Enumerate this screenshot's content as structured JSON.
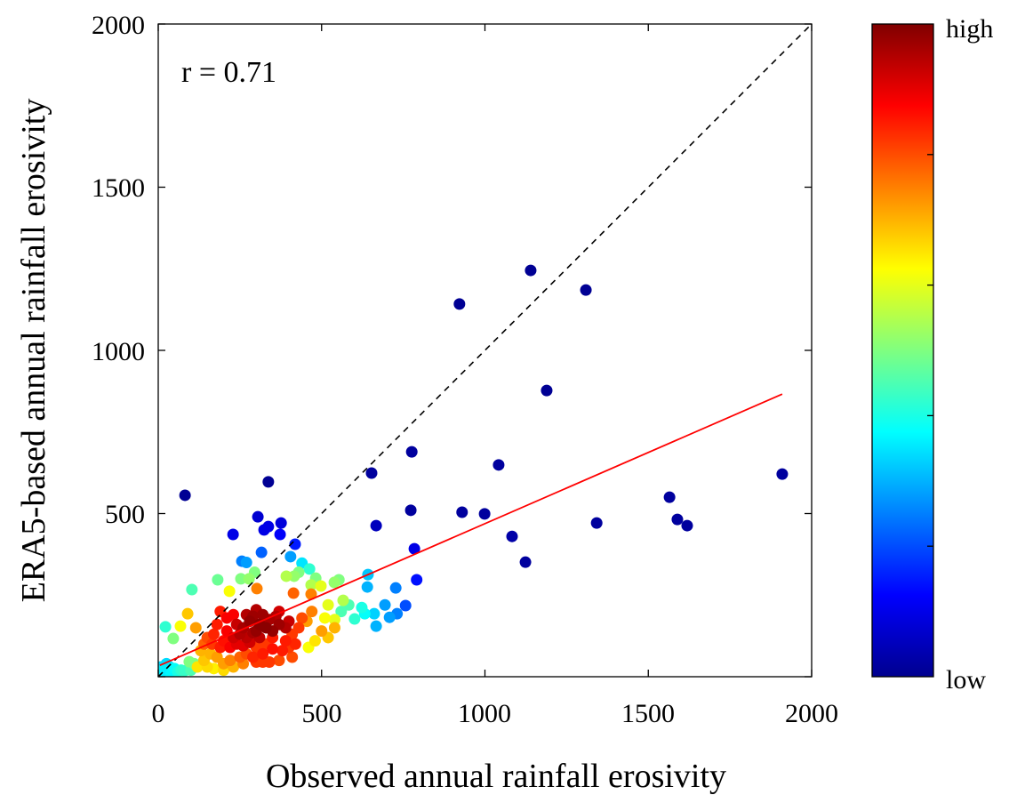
{
  "chart_data": {
    "type": "scatter",
    "xlabel": "Observed annual rainfall erosivity",
    "ylabel": "ERA5-based annual rainfall erosivity",
    "xlim": [
      0,
      2000
    ],
    "ylim": [
      0,
      2000
    ],
    "xticks": [
      "0",
      "500",
      "1000",
      "1500",
      "2000"
    ],
    "yticks": [
      "500",
      "1000",
      "1500",
      "2000"
    ],
    "xtick_values": [
      0,
      500,
      1000,
      1500,
      2000
    ],
    "ytick_values": [
      500,
      1000,
      1500,
      2000
    ],
    "annotation": "r = 0.71",
    "colorbar": {
      "high": "high",
      "low": "low",
      "colormap": "jet",
      "ticks": [
        0.2,
        0.4,
        0.6,
        0.8
      ]
    },
    "identity_line": {
      "style": "dashed",
      "color": "#000000",
      "from": [
        0,
        0
      ],
      "to": [
        2000,
        2000
      ]
    },
    "fit_line": {
      "color": "#ff0000",
      "from": [
        5,
        35
      ],
      "to": [
        1910,
        866
      ]
    },
    "point_format": [
      "x",
      "y",
      "density (0=low,1=high)"
    ],
    "points": [
      [
        82,
        556,
        0.02
      ],
      [
        337,
        597,
        0.02
      ],
      [
        653,
        624,
        0.03
      ],
      [
        922,
        1142,
        0.02
      ],
      [
        1140,
        1245,
        0.02
      ],
      [
        1309,
        1185,
        0.02
      ],
      [
        1189,
        877,
        0.02
      ],
      [
        776,
        689,
        0.03
      ],
      [
        1042,
        649,
        0.03
      ],
      [
        930,
        504,
        0.03
      ],
      [
        999,
        499,
        0.03
      ],
      [
        773,
        510,
        0.03
      ],
      [
        1083,
        430,
        0.04
      ],
      [
        1124,
        351,
        0.03
      ],
      [
        1342,
        471,
        0.03
      ],
      [
        1565,
        550,
        0.03
      ],
      [
        1589,
        482,
        0.03
      ],
      [
        1619,
        463,
        0.03
      ],
      [
        1910,
        621,
        0.03
      ],
      [
        667,
        463,
        0.06
      ],
      [
        784,
        392,
        0.1
      ],
      [
        791,
        297,
        0.14
      ],
      [
        305,
        490,
        0.08
      ],
      [
        324,
        450,
        0.1
      ],
      [
        337,
        460,
        0.1
      ],
      [
        373,
        436,
        0.12
      ],
      [
        376,
        471,
        0.09
      ],
      [
        229,
        436,
        0.1
      ],
      [
        419,
        406,
        0.15
      ],
      [
        256,
        354,
        0.25
      ],
      [
        270,
        350,
        0.28
      ],
      [
        316,
        381,
        0.22
      ],
      [
        405,
        368,
        0.28
      ],
      [
        440,
        348,
        0.35
      ],
      [
        642,
        313,
        0.32
      ],
      [
        640,
        275,
        0.3
      ],
      [
        727,
        272,
        0.25
      ],
      [
        694,
        220,
        0.28
      ],
      [
        731,
        193,
        0.25
      ],
      [
        757,
        218,
        0.2
      ],
      [
        661,
        193,
        0.33
      ],
      [
        632,
        193,
        0.38
      ],
      [
        708,
        182,
        0.28
      ],
      [
        667,
        155,
        0.3
      ],
      [
        601,
        177,
        0.42
      ],
      [
        623,
        212,
        0.4
      ],
      [
        583,
        220,
        0.45
      ],
      [
        560,
        200,
        0.45
      ],
      [
        182,
        297,
        0.48
      ],
      [
        253,
        300,
        0.5
      ],
      [
        278,
        300,
        0.52
      ],
      [
        392,
        308,
        0.55
      ],
      [
        416,
        308,
        0.52
      ],
      [
        463,
        330,
        0.42
      ],
      [
        482,
        302,
        0.5
      ],
      [
        498,
        278,
        0.6
      ],
      [
        553,
        297,
        0.5
      ],
      [
        539,
        289,
        0.52
      ],
      [
        566,
        234,
        0.55
      ],
      [
        468,
        281,
        0.55
      ],
      [
        103,
        267,
        0.45
      ],
      [
        22,
        153,
        0.42
      ],
      [
        46,
        117,
        0.5
      ],
      [
        95,
        46,
        0.5
      ],
      [
        430,
        320,
        0.5
      ],
      [
        295,
        320,
        0.5
      ],
      [
        520,
        220,
        0.6
      ],
      [
        540,
        175,
        0.6
      ],
      [
        510,
        180,
        0.62
      ],
      [
        90,
        193,
        0.68
      ],
      [
        68,
        155,
        0.62
      ],
      [
        414,
        256,
        0.78
      ],
      [
        468,
        253,
        0.75
      ],
      [
        302,
        270,
        0.75
      ],
      [
        218,
        262,
        0.62
      ],
      [
        115,
        150,
        0.72
      ],
      [
        540,
        150,
        0.7
      ],
      [
        520,
        120,
        0.68
      ],
      [
        480,
        110,
        0.65
      ],
      [
        460,
        90,
        0.62
      ],
      [
        500,
        140,
        0.72
      ],
      [
        455,
        170,
        0.72
      ],
      [
        470,
        200,
        0.75
      ],
      [
        440,
        180,
        0.8
      ],
      [
        430,
        150,
        0.82
      ],
      [
        410,
        130,
        0.82
      ],
      [
        390,
        110,
        0.85
      ],
      [
        350,
        120,
        0.85
      ],
      [
        330,
        100,
        0.82
      ],
      [
        300,
        90,
        0.82
      ],
      [
        270,
        70,
        0.8
      ],
      [
        250,
        60,
        0.78
      ],
      [
        220,
        50,
        0.75
      ],
      [
        200,
        40,
        0.72
      ],
      [
        180,
        60,
        0.72
      ],
      [
        160,
        70,
        0.7
      ],
      [
        140,
        50,
        0.68
      ],
      [
        130,
        80,
        0.7
      ],
      [
        120,
        30,
        0.65
      ],
      [
        150,
        30,
        0.66
      ],
      [
        170,
        25,
        0.64
      ],
      [
        200,
        20,
        0.66
      ],
      [
        230,
        30,
        0.7
      ],
      [
        260,
        40,
        0.75
      ],
      [
        300,
        45,
        0.82
      ],
      [
        320,
        45,
        0.82
      ],
      [
        340,
        45,
        0.82
      ],
      [
        370,
        50,
        0.8
      ],
      [
        410,
        60,
        0.8
      ],
      [
        370,
        200,
        0.92
      ],
      [
        360,
        185,
        0.95
      ],
      [
        340,
        175,
        0.96
      ],
      [
        320,
        190,
        0.97
      ],
      [
        300,
        205,
        0.95
      ],
      [
        290,
        185,
        0.97
      ],
      [
        280,
        170,
        0.98
      ],
      [
        310,
        160,
        0.99
      ],
      [
        330,
        150,
        0.99
      ],
      [
        350,
        140,
        0.98
      ],
      [
        370,
        160,
        0.97
      ],
      [
        390,
        150,
        0.95
      ],
      [
        400,
        170,
        0.93
      ],
      [
        260,
        150,
        0.96
      ],
      [
        250,
        130,
        0.95
      ],
      [
        240,
        160,
        0.93
      ],
      [
        230,
        120,
        0.92
      ],
      [
        270,
        120,
        0.94
      ],
      [
        290,
        135,
        0.96
      ],
      [
        310,
        120,
        0.94
      ],
      [
        210,
        140,
        0.88
      ],
      [
        200,
        110,
        0.86
      ],
      [
        190,
        90,
        0.85
      ],
      [
        220,
        90,
        0.88
      ],
      [
        240,
        100,
        0.9
      ],
      [
        260,
        95,
        0.9
      ],
      [
        280,
        105,
        0.92
      ],
      [
        170,
        130,
        0.84
      ],
      [
        165,
        100,
        0.82
      ],
      [
        180,
        160,
        0.85
      ],
      [
        190,
        200,
        0.85
      ],
      [
        150,
        120,
        0.8
      ],
      [
        140,
        100,
        0.78
      ],
      [
        210,
        180,
        0.88
      ],
      [
        230,
        190,
        0.88
      ],
      [
        300,
        140,
        0.98
      ],
      [
        270,
        190,
        0.95
      ],
      [
        420,
        100,
        0.84
      ],
      [
        400,
        90,
        0.82
      ],
      [
        380,
        80,
        0.85
      ],
      [
        350,
        85,
        0.86
      ],
      [
        320,
        70,
        0.85
      ],
      [
        290,
        60,
        0.84
      ],
      [
        5,
        5,
        0.35
      ],
      [
        10,
        12,
        0.35
      ],
      [
        15,
        20,
        0.36
      ],
      [
        20,
        8,
        0.35
      ],
      [
        30,
        15,
        0.36
      ],
      [
        40,
        10,
        0.37
      ],
      [
        50,
        25,
        0.38
      ],
      [
        60,
        15,
        0.4
      ],
      [
        70,
        20,
        0.42
      ],
      [
        80,
        18,
        0.43
      ],
      [
        100,
        20,
        0.45
      ],
      [
        110,
        40,
        0.5
      ],
      [
        25,
        40,
        0.34
      ],
      [
        35,
        30,
        0.35
      ],
      [
        8,
        30,
        0.34
      ]
    ]
  }
}
